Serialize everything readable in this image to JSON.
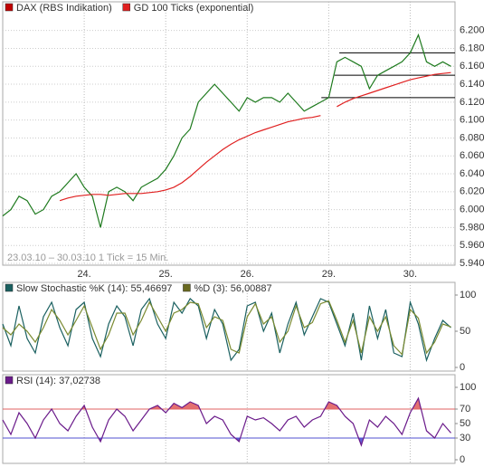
{
  "chart_data": [
    {
      "type": "line",
      "annotation": "23.03.10 – 30.03.10   1 Tick = 15 Min.",
      "x": [
        0,
        0.1,
        0.2,
        0.3,
        0.4,
        0.5,
        0.6,
        0.7,
        0.8,
        0.9,
        1,
        1.1,
        1.2,
        1.3,
        1.4,
        1.5,
        1.6,
        1.7,
        1.8,
        1.9,
        2,
        2.1,
        2.2,
        2.3,
        2.4,
        2.5,
        2.6,
        2.7,
        2.8,
        2.9,
        3,
        3.1,
        3.2,
        3.3,
        3.4,
        3.5,
        3.6,
        3.7,
        3.8,
        3.9,
        4,
        4.1,
        4.2,
        4.3,
        4.4,
        4.5,
        4.6,
        4.7,
        4.8,
        4.9,
        5,
        5.1,
        5.2,
        5.3,
        5.4,
        5.5
      ],
      "series": [
        {
          "name": "DAX (RBS Indikation)",
          "color": "#1e7a1e",
          "legend_color": "#c00000",
          "values": [
            5993,
            6000,
            6015,
            6010,
            5995,
            6000,
            6015,
            6020,
            6030,
            6040,
            6025,
            6015,
            5980,
            6020,
            6025,
            6020,
            6010,
            6025,
            6030,
            6035,
            6045,
            6060,
            6080,
            6090,
            6120,
            6130,
            6140,
            6130,
            6120,
            6110,
            6125,
            6120,
            6125,
            6125,
            6120,
            6130,
            6120,
            6110,
            6115,
            6120,
            6125,
            6165,
            6170,
            6165,
            6160,
            6135,
            6150,
            6155,
            6160,
            6165,
            6175,
            6195,
            6165,
            6160,
            6165,
            6160
          ]
        },
        {
          "name": "GD 100 Ticks (exponential)",
          "color": "#e02020",
          "legend_color": "#e02020",
          "values": [
            null,
            null,
            null,
            null,
            null,
            null,
            null,
            6010,
            6013,
            6015,
            6016,
            6017,
            6017,
            6016,
            6017,
            6018,
            6018,
            6018,
            6019,
            6020,
            6022,
            6025,
            6030,
            6037,
            6045,
            6053,
            6060,
            6067,
            6073,
            6078,
            6082,
            6086,
            6089,
            6092,
            6095,
            6098,
            6100,
            6102,
            6103,
            6105,
            null,
            6115,
            6120,
            6124,
            6127,
            6130,
            6133,
            6136,
            6139,
            6142,
            6145,
            6147,
            6149,
            6151,
            6152,
            6153
          ]
        }
      ],
      "xlim": [
        0,
        5.55
      ],
      "xticks": [
        {
          "value": 1,
          "label": "24."
        },
        {
          "value": 2,
          "label": "25."
        },
        {
          "value": 3,
          "label": "26."
        },
        {
          "value": 4,
          "label": "29."
        },
        {
          "value": 5,
          "label": "30."
        }
      ],
      "ylim": [
        5938,
        6232
      ],
      "yticks": [
        {
          "value": 5940,
          "label": "5.940"
        },
        {
          "value": 5960,
          "label": "5.960"
        },
        {
          "value": 5980,
          "label": "5.980"
        },
        {
          "value": 6000,
          "label": "6.000"
        },
        {
          "value": 6020,
          "label": "6.020"
        },
        {
          "value": 6040,
          "label": "6.040"
        },
        {
          "value": 6060,
          "label": "6.060"
        },
        {
          "value": 6080,
          "label": "6.080"
        },
        {
          "value": 6100,
          "label": "6.100"
        },
        {
          "value": 6120,
          "label": "6.120"
        },
        {
          "value": 6140,
          "label": "6.140"
        },
        {
          "value": 6160,
          "label": "6.160"
        },
        {
          "value": 6180,
          "label": "6.180"
        },
        {
          "value": 6200,
          "label": "6.200"
        }
      ],
      "hlines": [
        {
          "value": 6175,
          "from": 4.13
        },
        {
          "value": 6150,
          "from": 4.07
        },
        {
          "value": 6125,
          "from": 3.91
        }
      ],
      "grid": true
    },
    {
      "type": "line",
      "x": [
        0,
        0.1,
        0.2,
        0.3,
        0.4,
        0.5,
        0.6,
        0.7,
        0.8,
        0.9,
        1,
        1.1,
        1.2,
        1.3,
        1.4,
        1.5,
        1.6,
        1.7,
        1.8,
        1.9,
        2,
        2.1,
        2.2,
        2.3,
        2.4,
        2.5,
        2.6,
        2.7,
        2.8,
        2.9,
        3,
        3.1,
        3.2,
        3.3,
        3.4,
        3.5,
        3.6,
        3.7,
        3.8,
        3.9,
        4,
        4.1,
        4.2,
        4.3,
        4.4,
        4.5,
        4.6,
        4.7,
        4.8,
        4.9,
        5,
        5.1,
        5.2,
        5.3,
        5.4,
        5.5
      ],
      "series": [
        {
          "name": "Slow Stochastic %K (14): 55,46697",
          "color": "#1a6060",
          "legend_color": "#1a6060",
          "values": [
            60,
            30,
            85,
            40,
            20,
            70,
            90,
            55,
            30,
            80,
            90,
            40,
            15,
            60,
            85,
            70,
            30,
            80,
            95,
            60,
            40,
            90,
            75,
            95,
            85,
            40,
            80,
            60,
            10,
            25,
            85,
            90,
            50,
            75,
            20,
            60,
            90,
            45,
            70,
            95,
            90,
            60,
            30,
            75,
            10,
            85,
            40,
            80,
            20,
            15,
            90,
            60,
            10,
            40,
            65,
            55
          ]
        },
        {
          "name": "%D (3): 56,00887",
          "color": "#7a8a30",
          "legend_color": "#6a6a20",
          "values": [
            55,
            45,
            60,
            50,
            35,
            55,
            80,
            65,
            45,
            65,
            85,
            55,
            25,
            45,
            75,
            75,
            45,
            65,
            90,
            70,
            50,
            75,
            80,
            90,
            88,
            55,
            70,
            65,
            25,
            20,
            70,
            88,
            60,
            70,
            35,
            50,
            85,
            55,
            62,
            88,
            92,
            65,
            35,
            65,
            20,
            70,
            50,
            70,
            30,
            18,
            80,
            68,
            20,
            35,
            60,
            56
          ]
        }
      ],
      "xlim": [
        0,
        5.55
      ],
      "ylim": [
        -5,
        117.5
      ],
      "yticks": [
        0,
        50,
        100
      ]
    },
    {
      "type": "line",
      "x": [
        0,
        0.1,
        0.2,
        0.3,
        0.4,
        0.5,
        0.6,
        0.7,
        0.8,
        0.9,
        1,
        1.1,
        1.2,
        1.3,
        1.4,
        1.5,
        1.6,
        1.7,
        1.8,
        1.9,
        2,
        2.1,
        2.2,
        2.3,
        2.4,
        2.5,
        2.6,
        2.7,
        2.8,
        2.9,
        3,
        3.1,
        3.2,
        3.3,
        3.4,
        3.5,
        3.6,
        3.7,
        3.8,
        3.9,
        4,
        4.1,
        4.2,
        4.3,
        4.4,
        4.5,
        4.6,
        4.7,
        4.8,
        4.9,
        5,
        5.1,
        5.2,
        5.3,
        5.4,
        5.5
      ],
      "series": [
        {
          "name": "RSI (14): 37,02738",
          "color": "#6a1a8a",
          "legend_color": "#6a1a8a",
          "values": [
            55,
            35,
            65,
            50,
            30,
            55,
            70,
            50,
            40,
            60,
            75,
            45,
            25,
            55,
            70,
            60,
            40,
            55,
            70,
            75,
            65,
            78,
            72,
            80,
            75,
            50,
            60,
            55,
            35,
            25,
            60,
            55,
            58,
            50,
            40,
            55,
            60,
            45,
            55,
            60,
            80,
            75,
            60,
            50,
            20,
            55,
            45,
            60,
            50,
            35,
            65,
            85,
            40,
            30,
            50,
            37
          ]
        }
      ],
      "xlim": [
        0,
        5.55
      ],
      "ylim": [
        -5,
        117.5
      ],
      "yticks": [
        0,
        30,
        50,
        70,
        100
      ],
      "levels": [
        {
          "value": 70,
          "color": "#e06060"
        },
        {
          "value": 30,
          "color": "#5050d0"
        }
      ]
    }
  ]
}
